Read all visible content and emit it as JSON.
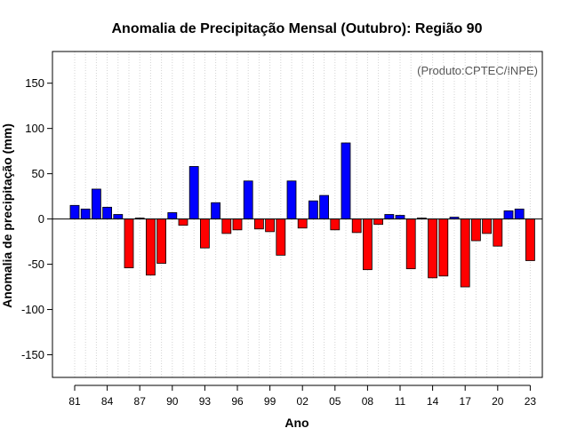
{
  "chart_data": {
    "type": "bar",
    "title": "Anomalia de Precipitação Mensal (Outubro): Região 90",
    "xlabel": "Ano",
    "ylabel": "Anomalia de precipitação (mm)",
    "annotation": "(Produto:CPTEC/INPE)",
    "ylim": [
      -175,
      185
    ],
    "yticks": [
      -150,
      -100,
      -50,
      0,
      50,
      100,
      150
    ],
    "grid": true,
    "categories": [
      "81",
      "82",
      "83",
      "84",
      "85",
      "86",
      "87",
      "88",
      "89",
      "90",
      "91",
      "92",
      "93",
      "94",
      "95",
      "96",
      "97",
      "98",
      "99",
      "00",
      "01",
      "02",
      "03",
      "04",
      "05",
      "06",
      "07",
      "08",
      "09",
      "10",
      "11",
      "12",
      "13",
      "14",
      "15",
      "16",
      "17",
      "18",
      "19",
      "20",
      "21",
      "22",
      "23"
    ],
    "xtick_labels": [
      "81",
      "84",
      "87",
      "90",
      "93",
      "96",
      "99",
      "02",
      "05",
      "08",
      "11",
      "14",
      "17",
      "20",
      "23"
    ],
    "values": [
      15,
      11,
      33,
      13,
      5,
      -54,
      1,
      -62,
      -49,
      7,
      -7,
      58,
      -32,
      18,
      -16,
      -12,
      42,
      -11,
      -14,
      -40,
      42,
      -10,
      20,
      26,
      -12,
      84,
      -15,
      -56,
      -6,
      5,
      4,
      -55,
      1,
      -65,
      -63,
      2,
      -75,
      -24,
      -16,
      -30,
      9,
      11,
      -46
    ],
    "positive_color": "#0000ff",
    "negative_color": "#ff0000"
  }
}
